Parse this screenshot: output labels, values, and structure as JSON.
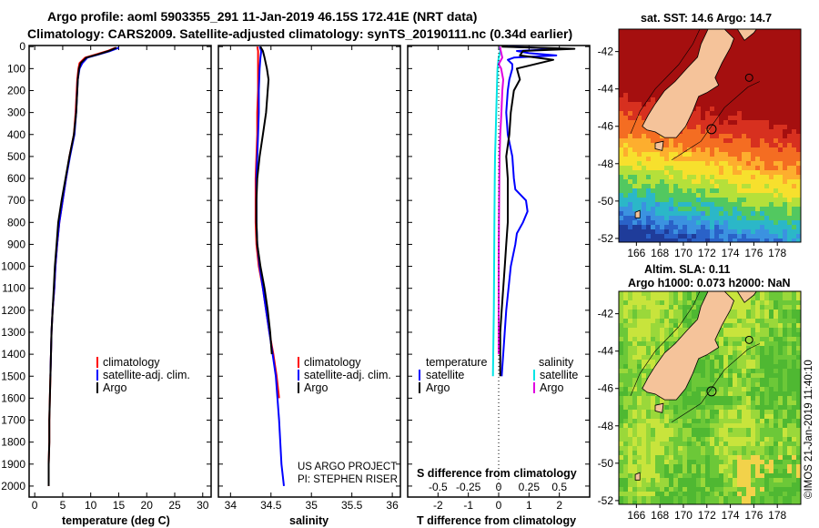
{
  "title": {
    "line1": "Argo profile: aoml 5903355_291 11-Jan-2019 46.15S 172.41E (NRT data)",
    "line2": "Climatology: CARS2009. Satellite-adjusted climatology: synTS_20190111.nc (0.34d earlier)"
  },
  "colors": {
    "climatology": "#ff0000",
    "satellite": "#0000ff",
    "argo": "#000000",
    "sal_satellite": "#00e5e5",
    "sal_argo": "#e000e0",
    "land": "#f5c39a"
  },
  "credits": {
    "project": "US ARGO PROJECT",
    "pi": "PI: STEPHEN RISER",
    "imos": "©IMOS 21-Jan-2019 11:40:10"
  },
  "chart_data": [
    {
      "type": "line",
      "id": "temperature",
      "xlabel": "temperature (deg C)",
      "ylabel": "depth",
      "xlim": [
        -1,
        31.5
      ],
      "ylim": [
        2050,
        -5
      ],
      "xticks": [
        0,
        5,
        10,
        15,
        20,
        25,
        30
      ],
      "xtick_labels": [
        "0",
        "5",
        "10",
        "15",
        "20",
        "25",
        "30"
      ],
      "yticks": [
        0,
        100,
        200,
        300,
        400,
        500,
        600,
        700,
        800,
        900,
        1000,
        1100,
        1200,
        1300,
        1400,
        1500,
        1600,
        1700,
        1800,
        1900,
        2000
      ],
      "ytick_labels": [
        "0",
        "100",
        "200",
        "300",
        "400",
        "500",
        "600",
        "700",
        "800",
        "900",
        "1000",
        "1100",
        "1200",
        "1300",
        "1400",
        "1500",
        "1600",
        "1700",
        "1800",
        "1900",
        "2000"
      ],
      "legend": [
        "climatology",
        "satellite-adj. clim.",
        "Argo"
      ],
      "series": [
        {
          "name": "climatology",
          "color": "#ff0000",
          "depth": [
            5,
            20,
            35,
            50,
            75,
            100,
            150,
            200,
            300,
            400,
            500,
            600,
            700,
            800,
            900,
            1000,
            1100,
            1200,
            1300,
            1400,
            1500,
            1600,
            1700,
            1800,
            1900,
            2000
          ],
          "values": [
            14.4,
            13.0,
            11.0,
            9.0,
            8.0,
            7.8,
            7.6,
            7.5,
            7.3,
            7.0,
            6.2,
            5.6,
            5.0,
            4.4,
            4.0,
            3.7,
            3.5,
            3.2,
            3.0,
            2.9,
            2.8,
            2.7,
            2.6,
            2.6,
            2.5,
            2.5
          ]
        },
        {
          "name": "satellite-adj. clim.",
          "color": "#0000ff",
          "depth": [
            5,
            20,
            35,
            50,
            75,
            100,
            150,
            200,
            300,
            400,
            500,
            600,
            700,
            800,
            900,
            1000,
            1100,
            1200,
            1300,
            1400,
            1500
          ],
          "values": [
            15.0,
            13.5,
            11.5,
            9.4,
            8.5,
            8.0,
            7.7,
            7.6,
            7.4,
            7.1,
            6.3,
            5.6,
            5.0,
            4.4,
            4.0,
            3.7,
            3.5,
            3.2,
            3.0,
            2.9,
            2.8
          ]
        },
        {
          "name": "Argo",
          "color": "#000000",
          "depth": [
            5,
            20,
            35,
            50,
            75,
            100,
            150,
            200,
            300,
            400,
            500,
            600,
            700,
            800,
            900,
            1000,
            1100,
            1200,
            1300,
            1400,
            1500,
            1600,
            1700,
            1800,
            1900,
            2000
          ],
          "values": [
            14.6,
            13.2,
            11.3,
            9.2,
            8.2,
            7.9,
            7.7,
            7.6,
            7.4,
            7.0,
            6.2,
            5.5,
            4.8,
            4.2,
            3.9,
            3.6,
            3.4,
            3.2,
            3.0,
            2.9,
            2.8,
            2.7,
            2.6,
            2.6,
            2.5,
            2.5
          ]
        }
      ]
    },
    {
      "type": "line",
      "id": "salinity",
      "xlabel": "salinity",
      "ylabel": "depth",
      "xlim": [
        33.85,
        36.1
      ],
      "ylim": [
        2050,
        -5
      ],
      "xticks": [
        34,
        34.5,
        35,
        35.5,
        36
      ],
      "xtick_labels": [
        "34",
        "34.5",
        "35",
        "35.5",
        "36"
      ],
      "legend": [
        "climatology",
        "satellite-adj. clim.",
        "Argo"
      ],
      "series": [
        {
          "name": "climatology",
          "color": "#ff0000",
          "depth": [
            0,
            20,
            50,
            100,
            200,
            300,
            400,
            500,
            600,
            700,
            800,
            900,
            1000,
            1100,
            1200,
            1300,
            1400,
            1500,
            1600
          ],
          "values": [
            34.33,
            34.34,
            34.34,
            34.34,
            34.34,
            34.33,
            34.33,
            34.32,
            34.31,
            34.31,
            34.31,
            34.32,
            34.35,
            34.4,
            34.44,
            34.48,
            34.53,
            34.57,
            34.6
          ]
        },
        {
          "name": "satellite-adj. clim.",
          "color": "#0000ff",
          "depth": [
            0,
            20,
            50,
            100,
            200,
            300,
            400,
            500,
            600,
            700,
            800,
            900,
            1000,
            1100,
            1200,
            1300,
            1400,
            1500,
            1700,
            1900,
            2000
          ],
          "values": [
            34.36,
            34.38,
            34.37,
            34.36,
            34.35,
            34.35,
            34.34,
            34.33,
            34.32,
            34.32,
            34.32,
            34.33,
            34.36,
            34.4,
            34.44,
            34.48,
            34.52,
            34.56,
            34.6,
            34.63,
            34.66
          ]
        },
        {
          "name": "Argo",
          "color": "#000000",
          "depth": [
            0,
            20,
            50,
            100,
            150,
            200,
            300,
            400,
            500,
            600,
            700,
            800,
            900,
            1000,
            1100,
            1200,
            1300,
            1400
          ],
          "values": [
            34.37,
            34.4,
            34.42,
            34.45,
            34.47,
            34.46,
            34.44,
            34.4,
            34.36,
            34.33,
            34.32,
            34.32,
            34.33,
            34.37,
            34.42,
            34.46,
            34.49,
            34.51
          ]
        }
      ]
    },
    {
      "type": "line",
      "id": "difference",
      "xlabel": "T difference from climatology",
      "xlabel2": "S difference from climatology",
      "ylabel": "depth",
      "xlim": [
        -3,
        3.0
      ],
      "ylim": [
        2050,
        -5
      ],
      "xticks": [
        -2,
        -1,
        0,
        1,
        2
      ],
      "xtick_labels": [
        "-2",
        "-1",
        "0",
        "1",
        "2"
      ],
      "sticks": [
        -0.5,
        -0.25,
        0,
        0.25,
        0.5
      ],
      "stick_labels": [
        "-0.5",
        "-0.25",
        "0",
        "0.25",
        "0.5"
      ],
      "legend_temperature_title": "temperature",
      "legend_salinity_title": "salinity",
      "legend_temperature": [
        "satellite",
        "Argo"
      ],
      "legend_salinity": [
        "satellite",
        "Argo"
      ],
      "series": [
        {
          "name": "T satellite",
          "color": "#0000ff",
          "depth": [
            0,
            10,
            20,
            30,
            40,
            50,
            60,
            80,
            100,
            150,
            200,
            300,
            400,
            500,
            600,
            650,
            700,
            750,
            800,
            850,
            900,
            1000,
            1200,
            1400,
            1500
          ],
          "values": [
            0.3,
            2.1,
            0.6,
            1.0,
            1.9,
            0.5,
            0.3,
            0.45,
            0.45,
            0.35,
            0.3,
            0.25,
            0.3,
            0.45,
            0.5,
            0.55,
            0.9,
            0.95,
            0.8,
            0.6,
            0.55,
            0.4,
            0.25,
            0.15,
            0.1
          ]
        },
        {
          "name": "T Argo",
          "color": "#000000",
          "depth": [
            0,
            10,
            20,
            40,
            60,
            100,
            150,
            200,
            300,
            400,
            500,
            600,
            700,
            800,
            900,
            1000,
            1100,
            1200,
            1300,
            1400,
            1500
          ],
          "values": [
            0.1,
            2.5,
            0.8,
            0.7,
            1.8,
            0.6,
            0.7,
            0.5,
            0.4,
            0.35,
            0.25,
            0.3,
            0.3,
            0.3,
            0.25,
            0.2,
            0.15,
            0.1,
            0.05,
            0.05,
            0.05
          ]
        },
        {
          "name": "S satellite",
          "color": "#00e5e5",
          "depth": [
            0,
            20,
            50,
            100,
            200,
            300,
            400,
            500,
            600,
            800,
            1000,
            1200,
            1400,
            1500
          ],
          "values": [
            0.03,
            0.05,
            0.0,
            -0.04,
            -0.06,
            -0.08,
            -0.1,
            -0.12,
            -0.13,
            -0.14,
            -0.15,
            -0.16,
            -0.18,
            -0.19
          ]
        },
        {
          "name": "S Argo",
          "color": "#e000e0",
          "depth": [
            0,
            20,
            50,
            80,
            100,
            150,
            200,
            300,
            400,
            500,
            600,
            800,
            1000,
            1200,
            1400
          ],
          "values": [
            0.04,
            0.07,
            0.12,
            0.0,
            0.08,
            0.15,
            0.12,
            0.09,
            0.05,
            0.03,
            0.02,
            0.01,
            0.0,
            0.0,
            0.0
          ]
        }
      ]
    },
    {
      "type": "heatmap",
      "id": "sst_map",
      "title": "sat. SST: 14.6 Argo: 14.7",
      "xticks": [
        166,
        168,
        170,
        172,
        174,
        176,
        178
      ],
      "yticks": [
        -42,
        -44,
        -46,
        -48,
        -50,
        -52
      ],
      "lon_range": [
        164.5,
        180
      ],
      "lat_range": [
        -52.2,
        -40.8
      ],
      "argo_marker": {
        "lon": 172.4,
        "lat": -46.15
      }
    },
    {
      "type": "heatmap",
      "id": "sla_map",
      "title_line1": "Altim. SLA: 0.11",
      "title_line2": "Argo h1000: 0.073 h2000: NaN",
      "xticks": [
        166,
        168,
        170,
        172,
        174,
        176,
        178
      ],
      "yticks": [
        -42,
        -44,
        -46,
        -48,
        -50,
        -52
      ],
      "lon_range": [
        164.5,
        180
      ],
      "lat_range": [
        -52.2,
        -40.8
      ],
      "argo_marker": {
        "lon": 172.4,
        "lat": -46.15
      }
    }
  ]
}
